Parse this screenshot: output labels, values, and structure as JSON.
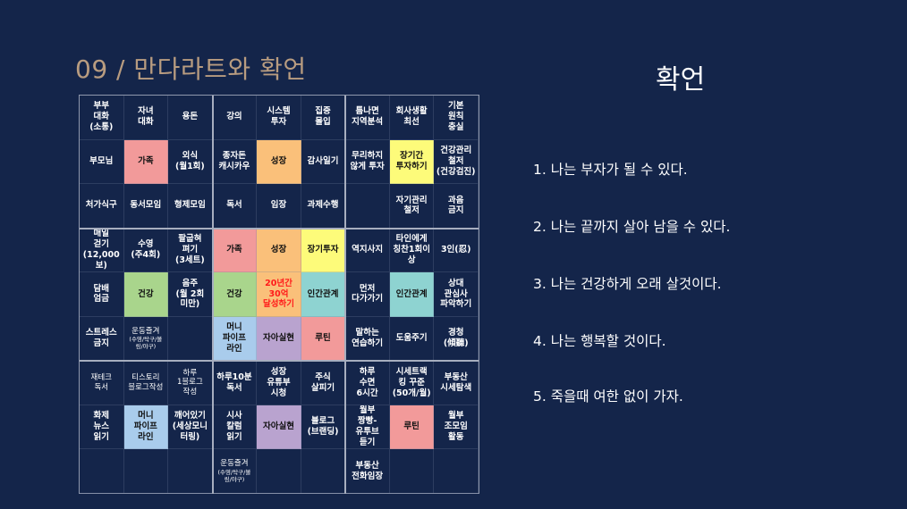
{
  "slide": {
    "title": "09 / 만다라트와 확언"
  },
  "colors": {
    "background": "#14254a",
    "title": "#b89c80",
    "pink": "#f29a9a",
    "orange": "#fac07a",
    "yellow": "#fdfb7a",
    "green": "#a9d58c",
    "teal": "#8ed3d1",
    "lavender": "#b9a3cf",
    "blue": "#a9ccec",
    "center_red_text": "#ff1a1a"
  },
  "mandalart": {
    "rows": [
      [
        "부부\n대화\n(소통)",
        "자녀\n대화",
        "용돈",
        "강의",
        "시스템\n투자",
        "집중\n몰입",
        "틈나면\n지역분석",
        "회사생활\n최선",
        "기본\n원칙\n충실"
      ],
      [
        "부모님",
        "가족",
        "외식\n(월1회)",
        "종자돈\n캐시카우",
        "성장",
        "감사일기",
        "무리하지\n않게 투자",
        "장기간\n투자하기",
        "건강관리\n철저\n(건강검진)"
      ],
      [
        "처가식구",
        "동서모임",
        "형제모임",
        "독서",
        "임장",
        "과제수행",
        "",
        "자기관리\n철저",
        "과음\n금지"
      ],
      [
        "매일\n걷기\n(12,000보)",
        "수영\n(주4회)",
        "팔굽혀\n펴기\n(3세트)",
        "가족",
        "성장",
        "장기투자",
        "역지사지",
        "타인에게\n칭찬1회이\n상",
        "3인(忍)"
      ],
      [
        "담배\n엄금",
        "건강",
        "음주\n(월 2회\n미만)",
        "건강",
        "20년간\n30억\n달성하기",
        "인간관계",
        "먼저\n다가가기",
        "인간관계",
        "상대\n관심사\n파악하기"
      ],
      [
        "스트레스\n금지",
        "운동즐겨",
        "",
        "머니\n파이프\n라인",
        "자아실현",
        "루틴",
        "말하는\n연습하기",
        "도움주기",
        "경청\n(傾聽)"
      ],
      [
        "재테크\n독서",
        "티스토리\n블로그작성",
        "하루\n1블로그\n작성",
        "하루10분\n독서",
        "성장\n유튜부\n시청",
        "주식\n살피기",
        "하루\n수면\n6시간",
        "시세트랙\n킹 꾸준\n(50개/월)",
        "부동산\n시세탐색"
      ],
      [
        "화제\n뉴스\n읽기",
        "머니\n파이프\n라인",
        "깨어있기\n(세상모니\n터링)",
        "시사\n칼럼\n읽기",
        "자아실현",
        "블로그\n(브랜딩)",
        "월부\n짱빵-\n유투브\n듣기",
        "루틴",
        "월부\n조모임\n활동"
      ],
      [
        "",
        "",
        "",
        "운동즐겨",
        "",
        "",
        "부동산\n전화임장",
        "",
        ""
      ]
    ],
    "subtext": {
      "5-1": "(수영/탁구/볼\n링/야구)",
      "8-3": "(수영/탁구/볼\n링/야구)"
    },
    "fills": {
      "1-1": "pink",
      "1-4": "orange",
      "1-7": "yellow",
      "3-3": "pink",
      "3-4": "orange",
      "3-5": "yellow",
      "4-1": "green",
      "4-3": "green",
      "4-4": "orange",
      "4-5": "teal",
      "4-7": "teal",
      "5-3": "blue",
      "5-4": "lavender",
      "5-5": "pink",
      "7-1": "blue",
      "7-4": "lavender",
      "7-7": "pink"
    }
  },
  "affirmations": {
    "title": "확언",
    "items": [
      "1. 나는 부자가 될 수 있다.",
      "2. 나는 끝까지 살아 남을 수 있다.",
      "3. 나는 건강하게 오래 살것이다.",
      "4. 나는 행복할 것이다.",
      "5. 죽을때 여한 없이 가자."
    ]
  }
}
